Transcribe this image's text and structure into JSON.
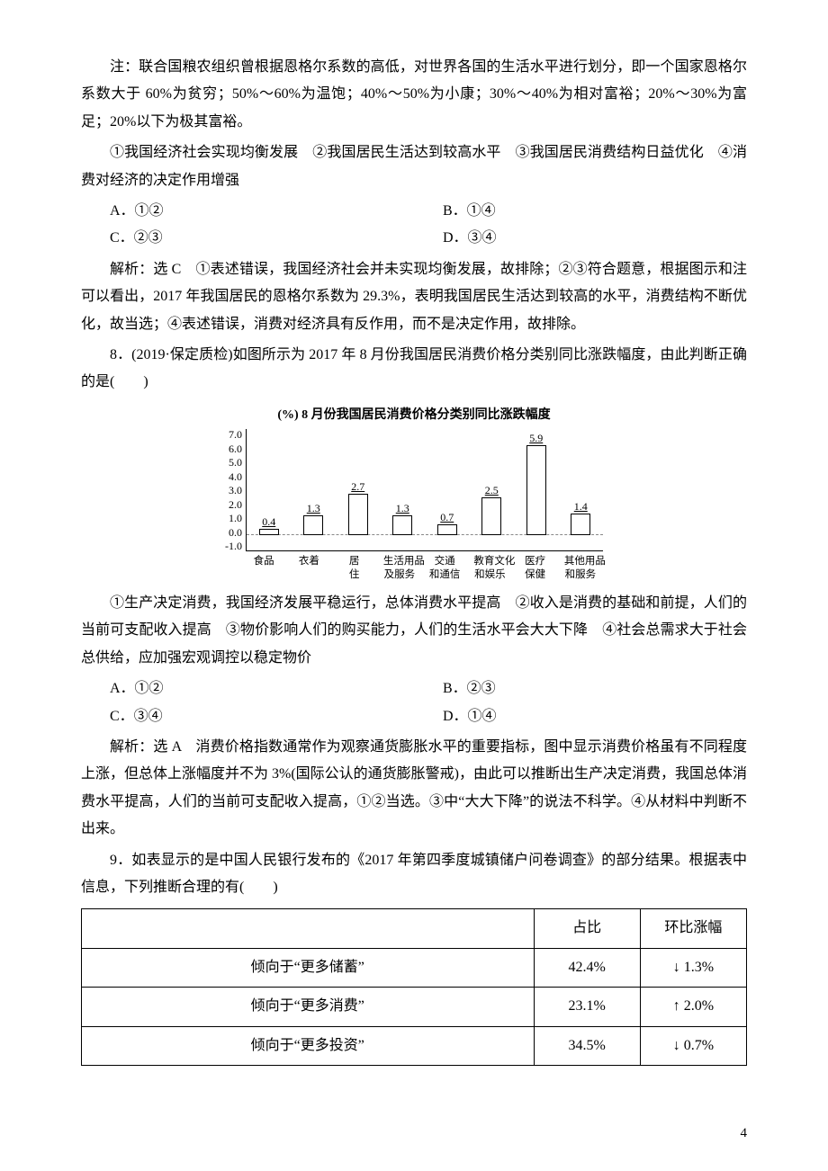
{
  "paragraphs": {
    "note": "注：联合国粮农组织曾根据恩格尔系数的高低，对世界各国的生活水平进行划分，即一个国家恩格尔系数大于 60%为贫穷；50%～60%为温饱；40%～50%为小康；30%～40%为相对富裕；20%～30%为富足；20%以下为极其富裕。",
    "q7_stems": "①我国经济社会实现均衡发展　②我国居民生活达到较高水平　③我国居民消费结构日益优化　④消费对经济的决定作用增强",
    "q7_analysis": "解析：选 C　①表述错误，我国经济社会并未实现均衡发展，故排除；②③符合题意，根据图示和注可以看出，2017 年我国居民的恩格尔系数为 29.3%，表明我国居民生活达到较高的水平，消费结构不断优化，故当选；④表述错误，消费对经济具有反作用，而不是决定作用，故排除。",
    "q8_stem": "8．(2019·保定质检)如图所示为 2017 年 8 月份我国居民消费价格分类别同比涨跌幅度，由此判断正确的是(　　)",
    "q8_items": "①生产决定消费，我国经济发展平稳运行，总体消费水平提高　②收入是消费的基础和前提，人们的当前可支配收入提高　③物价影响人们的购买能力，人们的生活水平会大大下降　④社会总需求大于社会总供给，应加强宏观调控以稳定物价",
    "q8_analysis": "解析：选 A　消费价格指数通常作为观察通货膨胀水平的重要指标，图中显示消费价格虽有不同程度上涨，但总体上涨幅度并不为 3%(国际公认的通货膨胀警戒)，由此可以推断出生产决定消费，我国总体消费水平提高，人们的当前可支配收入提高，①②当选。③中“大大下降”的说法不科学。④从材料中判断不出来。",
    "q9_stem": "9．如表显示的是中国人民银行发布的《2017 年第四季度城镇储户问卷调查》的部分结果。根据表中信息，下列推断合理的有(　　)"
  },
  "options7": {
    "A": "A．①②",
    "B": "B．①④",
    "C": "C．②③",
    "D": "D．③④"
  },
  "options8": {
    "A": "A．①②",
    "B": "B．②③",
    "C": "C．③④",
    "D": "D．①④"
  },
  "chart": {
    "title": "(%) 8 月份我国居民消费价格分类别同比涨跌幅度",
    "y_ticks": [
      "7.0",
      "6.0",
      "5.0",
      "4.0",
      "3.0",
      "2.0",
      "1.0",
      "0.0",
      "-1.0"
    ],
    "y_min": -1.0,
    "y_max": 7.0,
    "bar_border": "#000000",
    "bar_fill": "#ffffff",
    "value_fontsize": 12,
    "label_fontsize": 11.5,
    "title_fontsize": 14,
    "bars": [
      {
        "label_l1": "食品",
        "label_l2": "",
        "value": 0.4,
        "disp": "0.4"
      },
      {
        "label_l1": "衣着",
        "label_l2": "",
        "value": 1.3,
        "disp": "1.3"
      },
      {
        "label_l1": "居",
        "label_l2": "住",
        "value": 2.7,
        "disp": "2.7"
      },
      {
        "label_l1": "生活用品",
        "label_l2": "及服务",
        "value": 1.3,
        "disp": "1.3"
      },
      {
        "label_l1": "交通",
        "label_l2": "和通信",
        "value": 0.7,
        "disp": "0.7"
      },
      {
        "label_l1": "教育文化",
        "label_l2": "和娱乐",
        "value": 2.5,
        "disp": "2.5"
      },
      {
        "label_l1": "医疗",
        "label_l2": "保健",
        "value": 5.9,
        "disp": "5.9"
      },
      {
        "label_l1": "其他用品",
        "label_l2": "和服务",
        "value": 1.4,
        "disp": "1.4"
      }
    ]
  },
  "table9": {
    "headers": {
      "blank": "",
      "ratio": "占比",
      "change": "环比涨幅"
    },
    "rows": [
      {
        "name": "倾向于“更多储蓄”",
        "ratio": "42.4%",
        "arrow": "↓",
        "pct": "1.3%"
      },
      {
        "name": "倾向于“更多消费”",
        "ratio": "23.1%",
        "arrow": "↑",
        "pct": "2.0%"
      },
      {
        "name": "倾向于“更多投资”",
        "ratio": "34.5%",
        "arrow": "↓",
        "pct": "0.7%"
      }
    ]
  },
  "page_number": "4"
}
